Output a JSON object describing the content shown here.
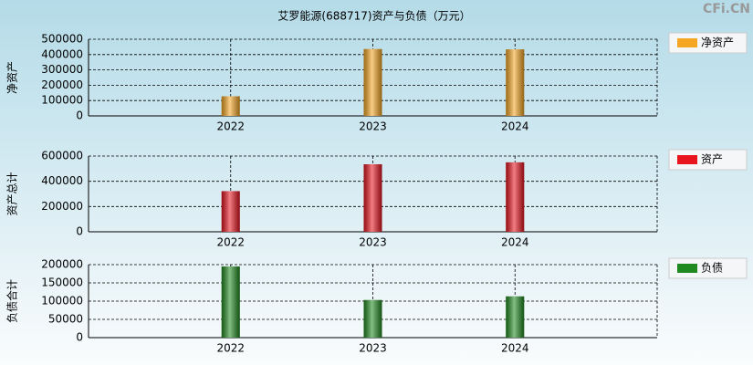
{
  "title": "艾罗能源(688717)资产与负债（万元）",
  "watermark": "CFi.CN",
  "chart_data": [
    {
      "type": "bar",
      "y_label": "净资产",
      "categories": [
        "2022",
        "2023",
        "2024"
      ],
      "series": [
        {
          "name": "净资产",
          "color": "#f5a623",
          "values": [
            128000,
            436000,
            434000
          ]
        }
      ],
      "ylim": [
        0,
        500000
      ],
      "yticks": [
        0,
        100000,
        200000,
        300000,
        400000,
        500000
      ],
      "grid": true
    },
    {
      "type": "bar",
      "y_label": "资产总计",
      "categories": [
        "2022",
        "2023",
        "2024"
      ],
      "series": [
        {
          "name": "资产",
          "color": "#e8141e",
          "values": [
            322000,
            535000,
            550000
          ]
        }
      ],
      "ylim": [
        0,
        600000
      ],
      "yticks": [
        0,
        200000,
        400000,
        600000
      ],
      "grid": true
    },
    {
      "type": "bar",
      "y_label": "负债合计",
      "categories": [
        "2022",
        "2023",
        "2024"
      ],
      "series": [
        {
          "name": "负债",
          "color": "#1f8a1f",
          "values": [
            195000,
            103000,
            113000
          ]
        }
      ],
      "ylim": [
        0,
        200000
      ],
      "yticks": [
        0,
        50000,
        100000,
        150000,
        200000
      ],
      "grid": true
    }
  ]
}
